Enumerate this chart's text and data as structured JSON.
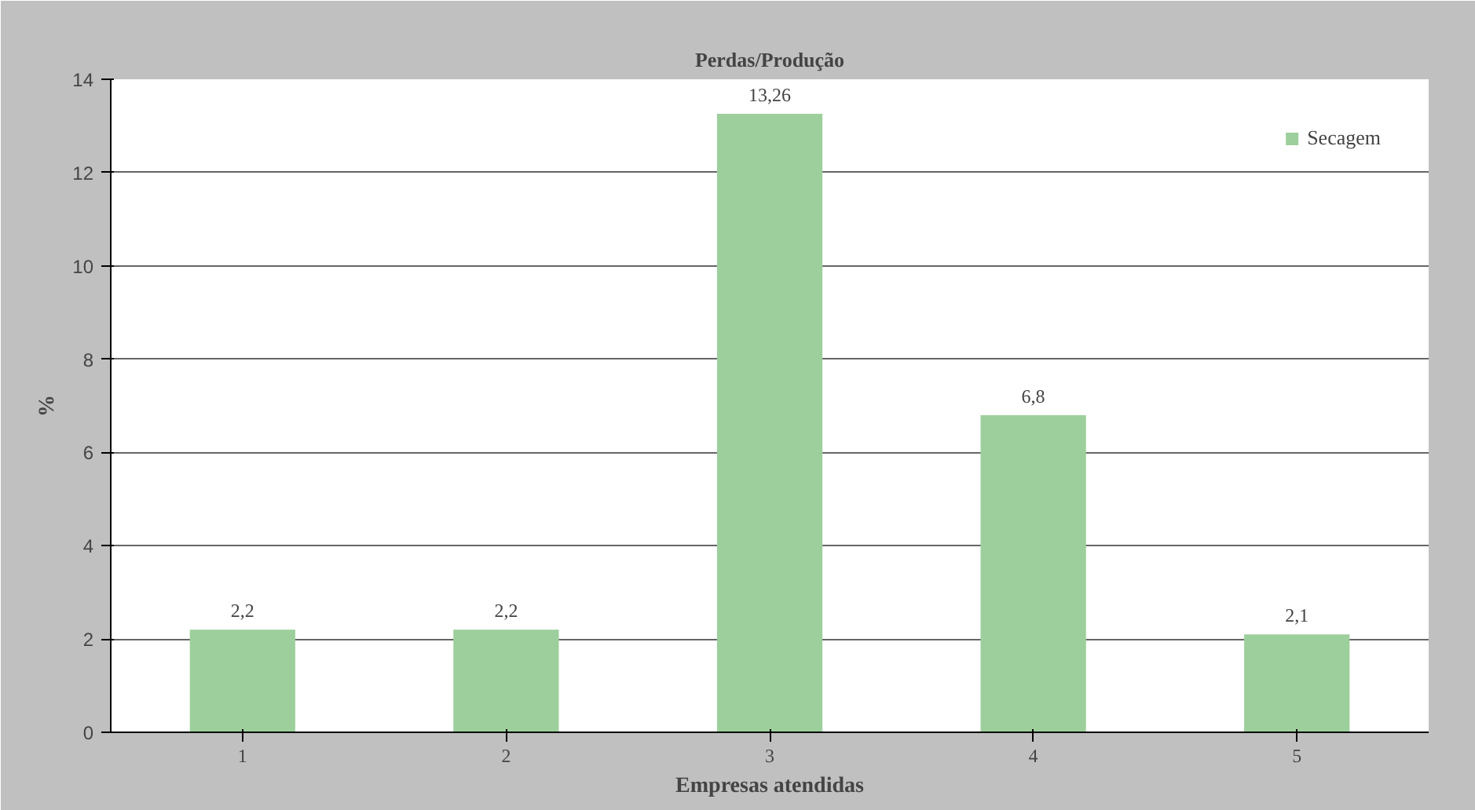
{
  "chart_data": {
    "type": "bar",
    "title": "Perdas/Produção",
    "xlabel": "Empresas atendidas",
    "ylabel": "%",
    "categories": [
      "1",
      "2",
      "3",
      "4",
      "5"
    ],
    "series": [
      {
        "name": "Secagem",
        "color": "#9ccf9c",
        "values": [
          2.2,
          2.2,
          13.26,
          6.8,
          2.1
        ]
      }
    ],
    "ylim": [
      0,
      14
    ],
    "yticks": [
      0,
      2,
      4,
      6,
      8,
      10,
      12,
      14
    ],
    "grid": "y",
    "legend": "top right",
    "value_labels": [
      "2,2",
      "2,2",
      "13,26",
      "6,8",
      "2,1"
    ]
  }
}
